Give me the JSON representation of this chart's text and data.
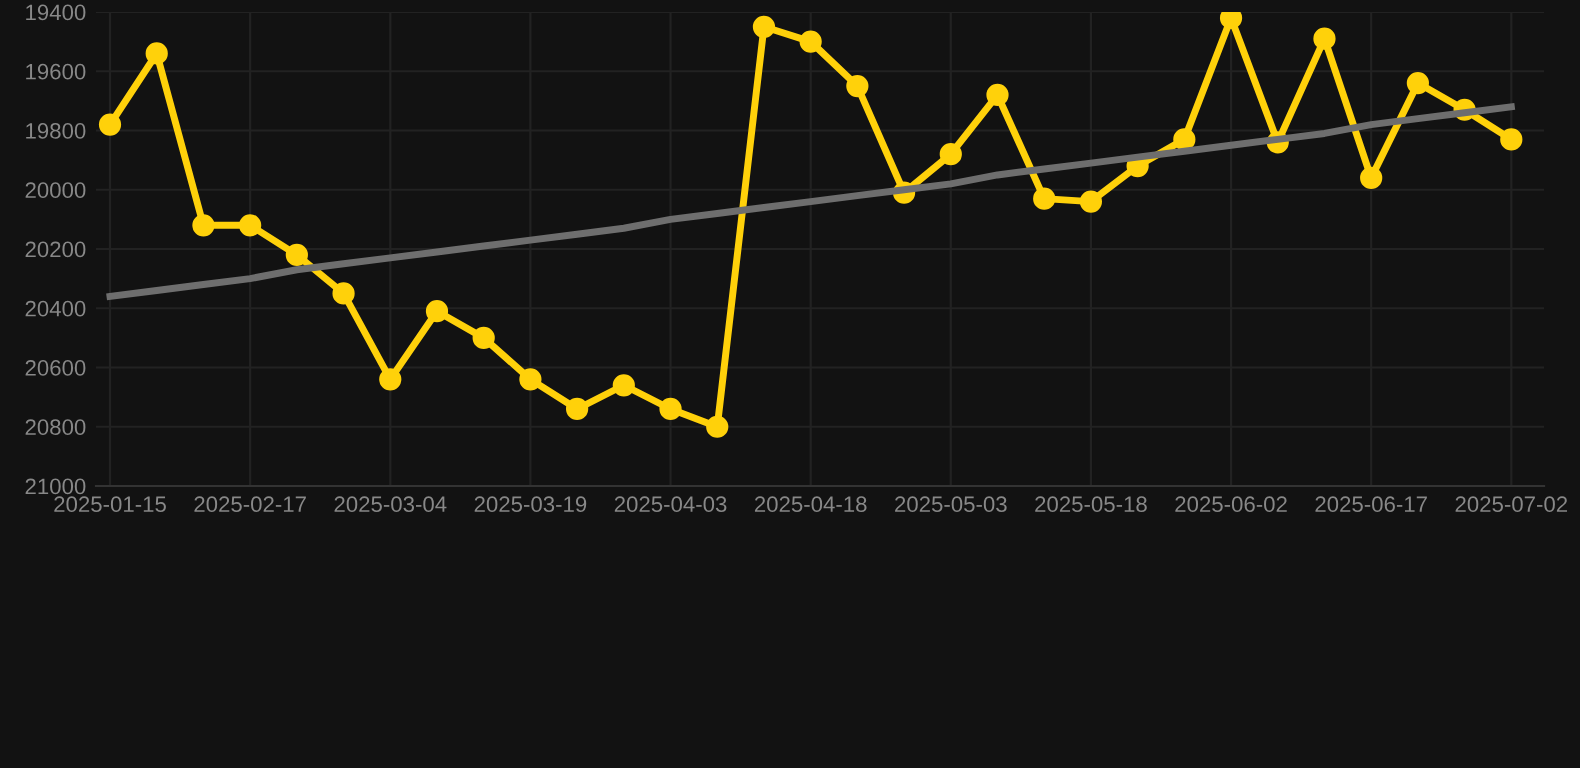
{
  "chart_data": {
    "type": "line",
    "categories": [
      "2025-01-15",
      null,
      null,
      "2025-02-17",
      null,
      null,
      "2025-03-04",
      null,
      null,
      "2025-03-19",
      null,
      null,
      "2025-04-03",
      null,
      null,
      "2025-04-18",
      null,
      null,
      "2025-05-03",
      null,
      null,
      "2025-05-18",
      null,
      null,
      "2025-06-02",
      null,
      null,
      "2025-06-17",
      null,
      null,
      "2025-07-02"
    ],
    "series": [
      {
        "color": "#ffd10a",
        "marker": "circle",
        "values": [
          19780,
          19540,
          20120,
          20120,
          20220,
          20350,
          20640,
          20410,
          20500,
          20640,
          20740,
          20660,
          20740,
          20800,
          19450,
          19500,
          19650,
          20010,
          19880,
          19680,
          20030,
          20040,
          19920,
          19830,
          19420,
          19840,
          19490,
          19960,
          19640,
          19730,
          19830
        ]
      },
      {
        "type": "line",
        "color": "#6e6e6e",
        "marker": "none",
        "values": [
          20360,
          20340,
          20320,
          20300,
          20270,
          20250,
          20230,
          20210,
          20190,
          20170,
          20150,
          20130,
          20100,
          20080,
          20060,
          20040,
          20020,
          20000,
          19980,
          19950,
          19930,
          19910,
          19890,
          19870,
          19850,
          19830,
          19810,
          19780,
          19760,
          19740,
          19720
        ]
      }
    ],
    "ylim": [
      21000,
      19400
    ],
    "yticks": [
      19400,
      19600,
      19800,
      20000,
      20200,
      20400,
      20600,
      20800,
      21000
    ],
    "grid": true,
    "line_style": "solid"
  }
}
